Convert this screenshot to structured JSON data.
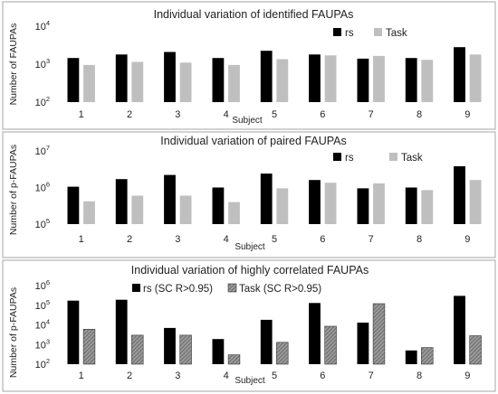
{
  "chart_data": [
    {
      "type": "bar",
      "title": "Individual  variation  of identified  FAUPAs",
      "xlabel": "Subject",
      "ylabel": "Number of FAUPAs",
      "y_scale": "log",
      "ylim": [
        100,
        10000
      ],
      "y_ticks": [
        {
          "base": "10",
          "exp": "2"
        },
        {
          "base": "10",
          "exp": "3"
        },
        {
          "base": "10",
          "exp": "4"
        }
      ],
      "categories": [
        "1",
        "2",
        "3",
        "4",
        "5",
        "6",
        "7",
        "8",
        "9"
      ],
      "legend_position": "top-right",
      "series": [
        {
          "name": "rs",
          "color": "#000000",
          "values": [
            1450,
            1800,
            2100,
            1450,
            2250,
            1800,
            1400,
            1450,
            2800
          ]
        },
        {
          "name": "Task",
          "color": "#bfbfbf",
          "values": [
            950,
            1150,
            1100,
            950,
            1350,
            1700,
            1650,
            1300,
            1800
          ]
        }
      ]
    },
    {
      "type": "bar",
      "title": "Individual  variation  of paired  FAUPAs",
      "xlabel": "Subject",
      "ylabel": "Number of p-FAUPAs",
      "y_scale": "log",
      "ylim": [
        100000,
        10000000
      ],
      "y_ticks": [
        {
          "base": "10",
          "exp": "5"
        },
        {
          "base": "10",
          "exp": "6"
        },
        {
          "base": "10",
          "exp": "7"
        }
      ],
      "categories": [
        "1",
        "2",
        "3",
        "4",
        "5",
        "6",
        "7",
        "8",
        "9"
      ],
      "legend_position": "top-right",
      "series": [
        {
          "name": "rs",
          "color": "#000000",
          "values": [
            1050000,
            1700000,
            2200000,
            1000000,
            2400000,
            1600000,
            950000,
            1000000,
            3800000
          ]
        },
        {
          "name": "Task",
          "color": "#bfbfbf",
          "values": [
            420000,
            600000,
            600000,
            400000,
            950000,
            1350000,
            1300000,
            850000,
            1600000
          ]
        }
      ]
    },
    {
      "type": "bar",
      "title": "Individual  variation  of highly correlated  FAUPAs",
      "xlabel": "Subject",
      "ylabel": "Number of p-FAUPAs",
      "y_scale": "log",
      "ylim": [
        100,
        1000000
      ],
      "y_ticks": [
        {
          "base": "10",
          "exp": "2"
        },
        {
          "base": "10",
          "exp": "3"
        },
        {
          "base": "10",
          "exp": "4"
        },
        {
          "base": "10",
          "exp": "5"
        },
        {
          "base": "10",
          "exp": "6"
        }
      ],
      "categories": [
        "1",
        "2",
        "3",
        "4",
        "5",
        "6",
        "7",
        "8",
        "9"
      ],
      "legend_position": "top-left",
      "series": [
        {
          "name": "rs (SC R>0.95)",
          "color": "#000000",
          "pattern": "solid",
          "values": [
            170000,
            190000,
            7000,
            1900,
            18000,
            130000,
            13000,
            500,
            300000
          ]
        },
        {
          "name": "Task (SC R>0.95)",
          "color": "#808080",
          "pattern": "hatched",
          "values": [
            6000,
            3000,
            3000,
            300,
            1300,
            8500,
            120000,
            700,
            2800
          ]
        }
      ]
    }
  ]
}
